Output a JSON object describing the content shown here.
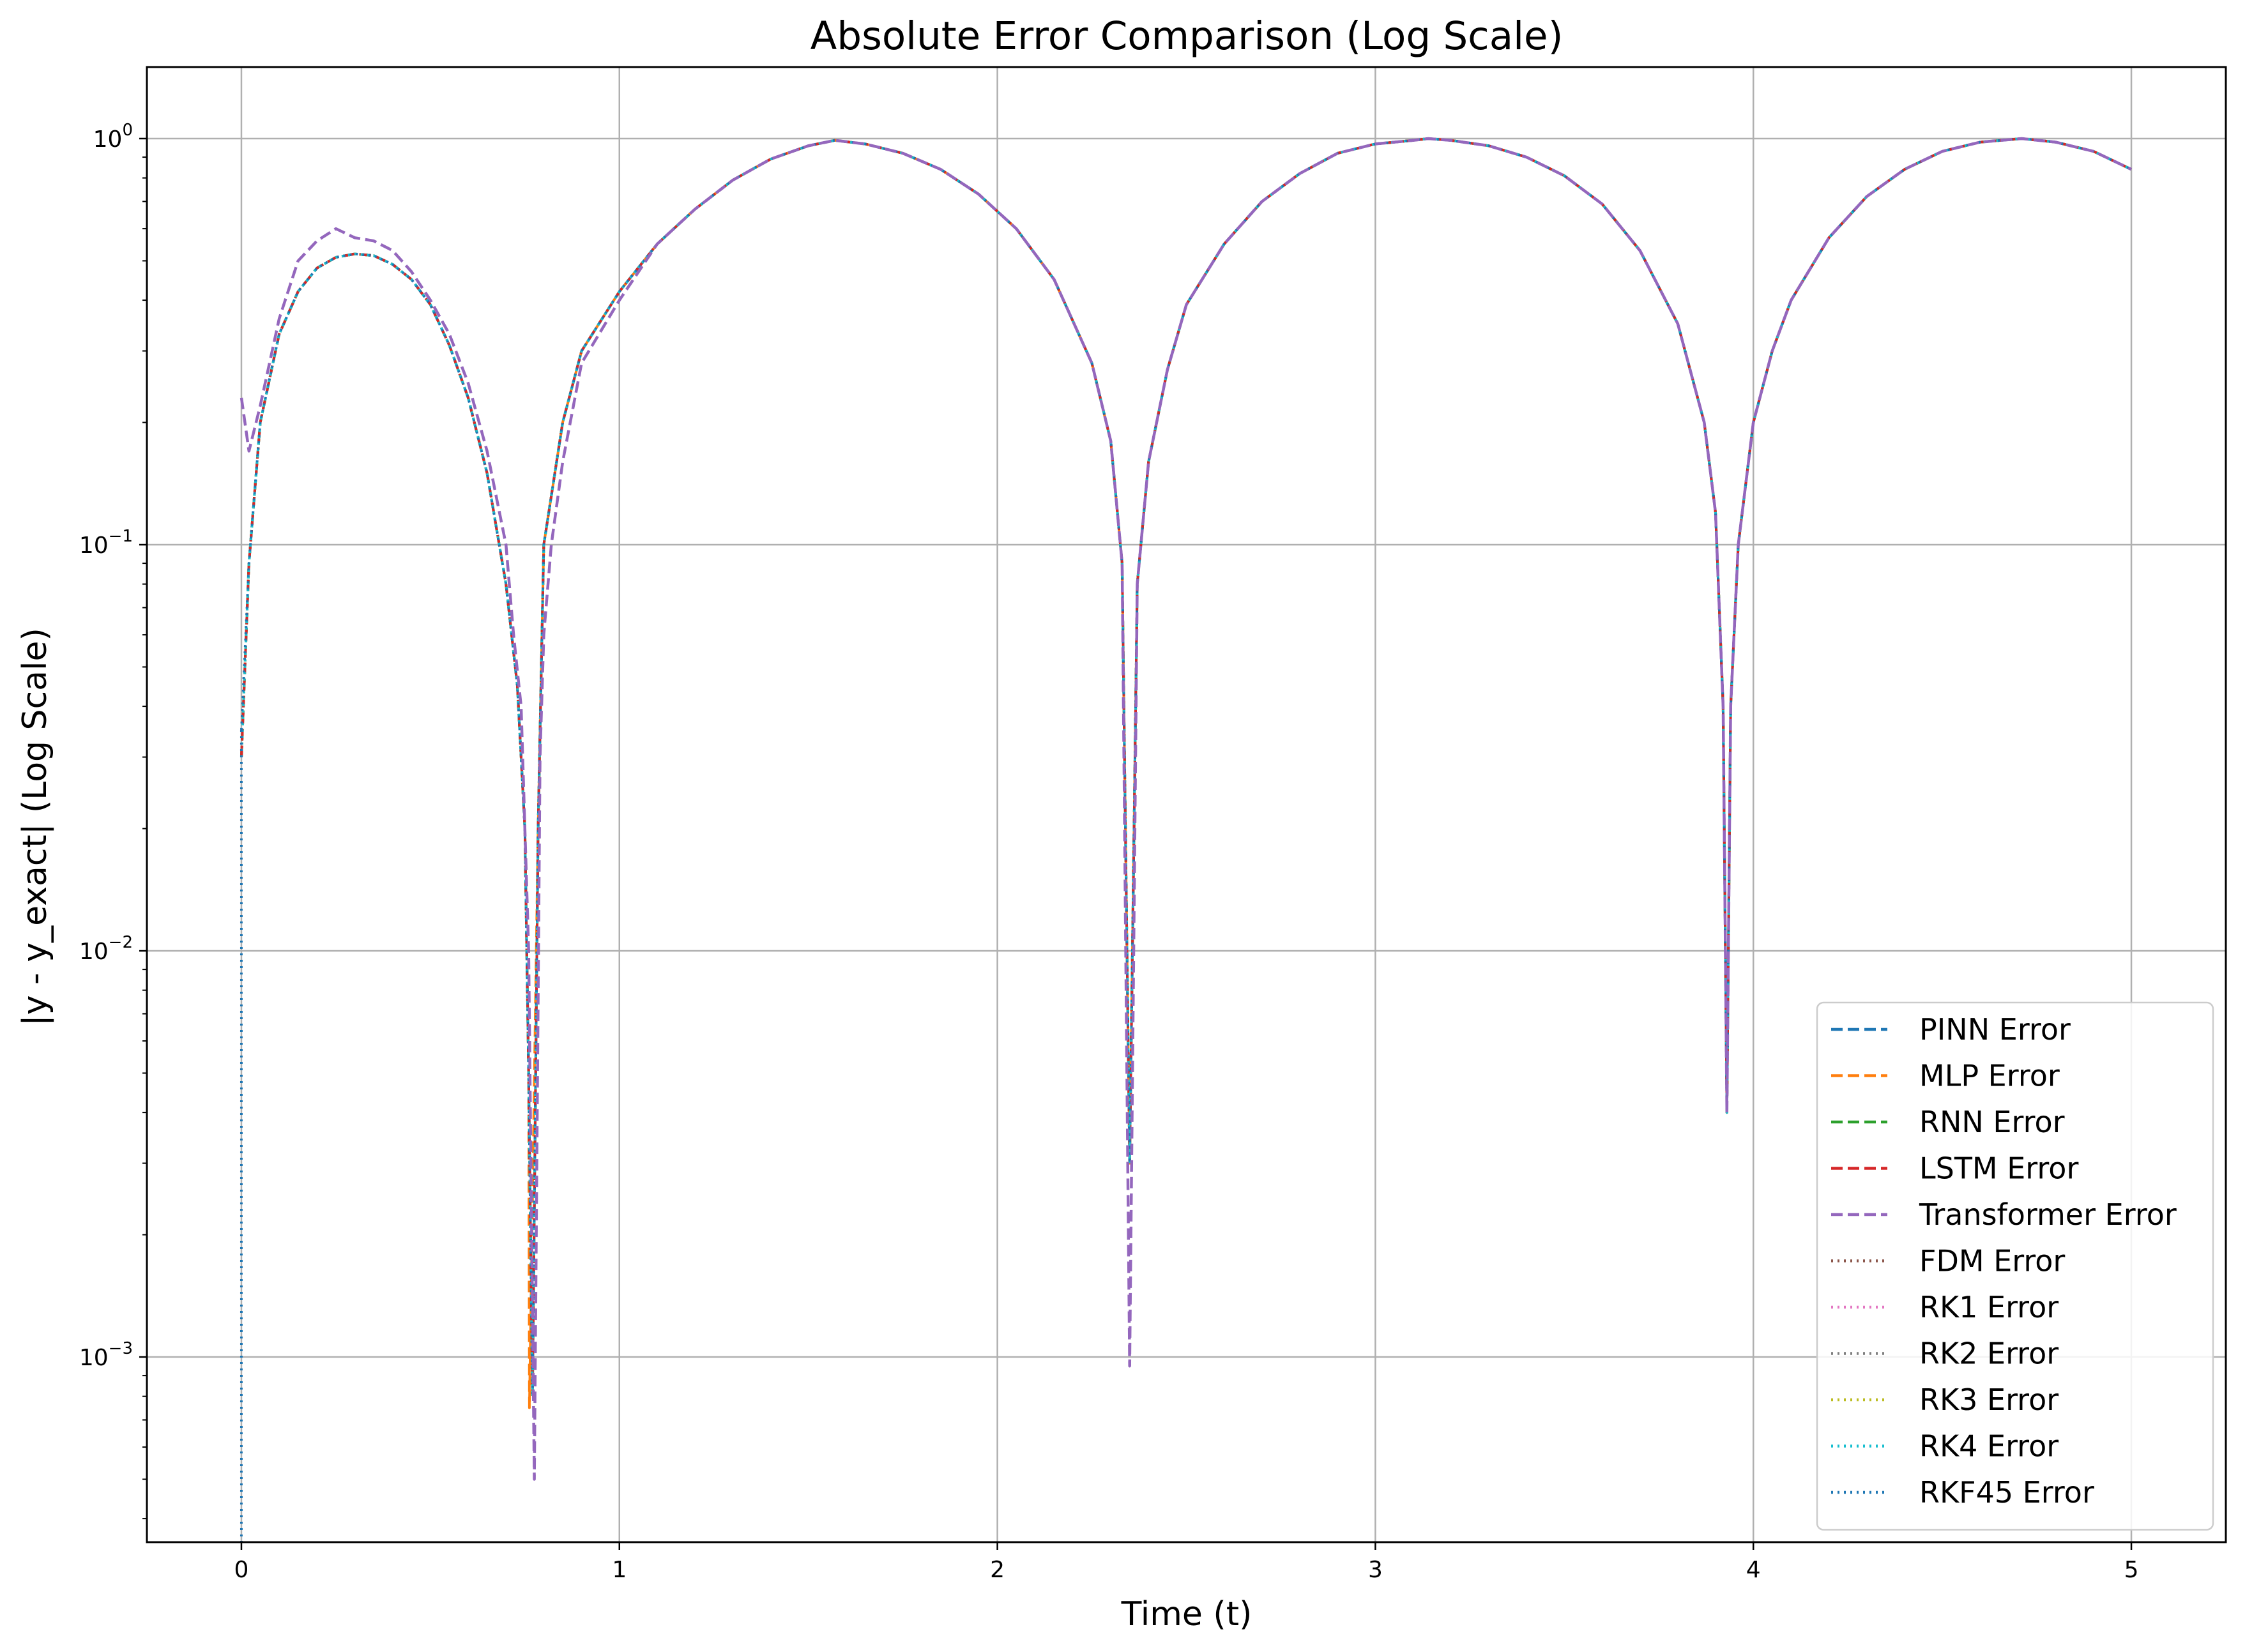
{
  "chart_data": {
    "type": "line",
    "title": "Absolute Error Comparison (Log Scale)",
    "xlabel": "Time (t)",
    "ylabel": "|y - y_exact| (Log Scale)",
    "xlim": [
      -0.25,
      5.25
    ],
    "ylim": [
      0.00035,
      1.5
    ],
    "yscale": "log",
    "grid": true,
    "legend_position": "lower-right",
    "x_ticks": [
      "0",
      "1",
      "2",
      "3",
      "4",
      "5"
    ],
    "y_ticks": [
      {
        "base": "10",
        "exp": "0"
      },
      {
        "base": "10",
        "exp": "−1"
      },
      {
        "base": "10",
        "exp": "−2"
      },
      {
        "base": "10",
        "exp": "−3"
      }
    ],
    "series": [
      {
        "name": "PINN Error",
        "color": "#1f77b4",
        "dash": "dashed"
      },
      {
        "name": "MLP Error",
        "color": "#ff7f0e",
        "dash": "dashed"
      },
      {
        "name": "RNN Error",
        "color": "#2ca02c",
        "dash": "dashed"
      },
      {
        "name": "LSTM Error",
        "color": "#d62728",
        "dash": "dashed"
      },
      {
        "name": "Transformer Error",
        "color": "#9467bd",
        "dash": "dashed"
      },
      {
        "name": "FDM Error",
        "color": "#8c564b",
        "dash": "dotted"
      },
      {
        "name": "RK1 Error",
        "color": "#e377c2",
        "dash": "dotted"
      },
      {
        "name": "RK2 Error",
        "color": "#7f7f7f",
        "dash": "dotted"
      },
      {
        "name": "RK3 Error",
        "color": "#bcbd22",
        "dash": "dotted"
      },
      {
        "name": "RK4 Error",
        "color": "#17becf",
        "dash": "dotted"
      },
      {
        "name": "RKF45 Error",
        "color": "#1f77b4",
        "dash": "dotted"
      }
    ],
    "curve_points": {
      "x": [
        0.0,
        0.02,
        0.05,
        0.1,
        0.15,
        0.2,
        0.25,
        0.3,
        0.35,
        0.4,
        0.45,
        0.5,
        0.55,
        0.6,
        0.65,
        0.7,
        0.73,
        0.75,
        0.76,
        0.77,
        0.785,
        0.8,
        0.85,
        0.9,
        1.0,
        1.1,
        1.2,
        1.3,
        1.4,
        1.5,
        1.57,
        1.65,
        1.75,
        1.85,
        1.95,
        2.05,
        2.15,
        2.25,
        2.3,
        2.33,
        2.35,
        2.37,
        2.4,
        2.45,
        2.5,
        2.6,
        2.7,
        2.8,
        2.9,
        3.0,
        3.1,
        3.14,
        3.2,
        3.3,
        3.4,
        3.5,
        3.6,
        3.7,
        3.8,
        3.87,
        3.9,
        3.92,
        3.93,
        3.94,
        3.96,
        4.0,
        4.05,
        4.1,
        4.2,
        4.3,
        4.4,
        4.5,
        4.6,
        4.71,
        4.8,
        4.9,
        5.0
      ],
      "y": [
        0.03,
        0.09,
        0.2,
        0.33,
        0.42,
        0.48,
        0.51,
        0.52,
        0.515,
        0.49,
        0.45,
        0.39,
        0.31,
        0.23,
        0.15,
        0.08,
        0.045,
        0.02,
        0.005,
        0.0008,
        0.02,
        0.1,
        0.2,
        0.3,
        0.42,
        0.55,
        0.67,
        0.79,
        0.89,
        0.96,
        0.99,
        0.97,
        0.92,
        0.84,
        0.73,
        0.6,
        0.45,
        0.28,
        0.18,
        0.09,
        0.003,
        0.08,
        0.16,
        0.27,
        0.39,
        0.55,
        0.7,
        0.82,
        0.92,
        0.97,
        0.99,
        1.0,
        0.99,
        0.96,
        0.9,
        0.81,
        0.69,
        0.53,
        0.35,
        0.2,
        0.12,
        0.04,
        0.004,
        0.04,
        0.1,
        0.2,
        0.3,
        0.4,
        0.57,
        0.72,
        0.84,
        0.93,
        0.98,
        1.0,
        0.98,
        0.93,
        0.84
      ]
    },
    "transformer_points": {
      "x": [
        0.0,
        0.02,
        0.05,
        0.1,
        0.15,
        0.2,
        0.25,
        0.3,
        0.35,
        0.4,
        0.45,
        0.5,
        0.55,
        0.6,
        0.65,
        0.7,
        0.72,
        0.74,
        0.75,
        0.76,
        0.775,
        0.79,
        0.8,
        0.82,
        0.85,
        0.9,
        1.0
      ],
      "y": [
        0.23,
        0.17,
        0.22,
        0.36,
        0.5,
        0.56,
        0.6,
        0.57,
        0.56,
        0.53,
        0.47,
        0.4,
        0.33,
        0.25,
        0.17,
        0.1,
        0.06,
        0.04,
        0.02,
        0.01,
        0.0005,
        0.03,
        0.06,
        0.1,
        0.16,
        0.28,
        0.4
      ]
    },
    "mlp_spike": {
      "x": 0.762,
      "y": 0.00075
    },
    "transformer_spike_2": {
      "x": 2.35,
      "y": 0.00095
    },
    "rkf45_start": {
      "x": 0.0,
      "y": 0.035
    }
  }
}
